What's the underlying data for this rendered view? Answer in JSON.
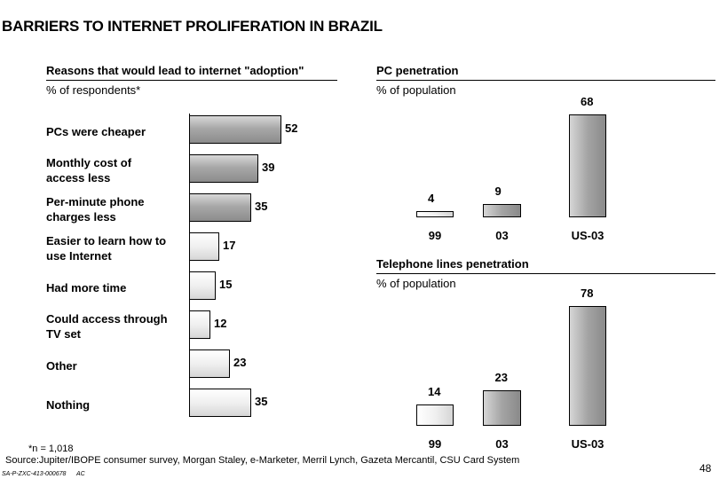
{
  "page_title": "BARRIERS TO INTERNET PROLIFERATION IN BRAZIL",
  "page_number": "48",
  "footnote": "*n = 1,018",
  "source": "Source:Jupiter/IBOPE consumer survey, Morgan Staley, e-Marketer, Merril Lynch, Gazeta Mercantil, CSU Card System",
  "doc_code": "SA-P-ZXC-413-000678",
  "doc_initials": "AC",
  "colors": {
    "dark_bar": "#a0a0a0",
    "light_bar": "#f0f0f0",
    "axis": "#000000"
  },
  "chart_data": [
    {
      "type": "bar",
      "orientation": "horizontal",
      "title": "Reasons that would lead to internet \"adoption\"",
      "subtitle": "% of respondents*",
      "categories": [
        "PCs were cheaper",
        "Monthly cost of access less",
        "Per-minute phone charges less",
        "Easier to learn how to use Internet",
        "Had more time",
        "Could access through TV set",
        "Other",
        "Nothing"
      ],
      "labels": [
        [
          "PCs were cheaper"
        ],
        [
          "Monthly cost of",
          "access less"
        ],
        [
          "Per-minute phone",
          "charges less"
        ],
        [
          "Easier to learn how to",
          "use Internet"
        ],
        [
          "Had more time"
        ],
        [
          "Could access through",
          "TV set"
        ],
        [
          "Other"
        ],
        [
          "Nothing"
        ]
      ],
      "values": [
        52,
        39,
        35,
        17,
        15,
        12,
        23,
        35
      ],
      "styles": [
        "dark",
        "dark",
        "dark",
        "light",
        "light",
        "light",
        "light",
        "light"
      ],
      "xlim": [
        0,
        52
      ]
    },
    {
      "type": "bar",
      "orientation": "vertical",
      "title": "PC penetration",
      "subtitle": "% of population",
      "categories": [
        "99",
        "03",
        "US-03"
      ],
      "values": [
        4,
        9,
        68
      ],
      "styles": [
        "light",
        "dark",
        "dark"
      ],
      "ylim": [
        0,
        68
      ]
    },
    {
      "type": "bar",
      "orientation": "vertical",
      "title": "Telephone lines penetration",
      "subtitle": "% of population",
      "categories": [
        "99",
        "03",
        "US-03"
      ],
      "values": [
        14,
        23,
        78
      ],
      "styles": [
        "light",
        "dark",
        "dark"
      ],
      "ylim": [
        0,
        78
      ]
    }
  ]
}
